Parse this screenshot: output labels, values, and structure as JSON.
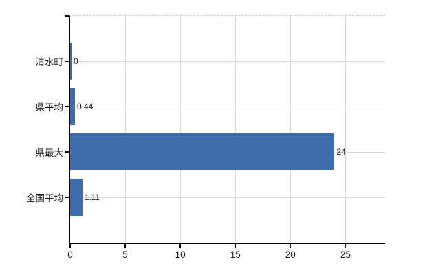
{
  "chart_data": {
    "type": "bar",
    "orientation": "horizontal",
    "title": "",
    "xlabel": "",
    "ylabel": "",
    "categories": [
      "清水町",
      "県平均",
      "県最大",
      "全国平均"
    ],
    "values": [
      0,
      0.44,
      24,
      1.11
    ],
    "value_labels": [
      "0",
      "0.44",
      "24",
      "1.11"
    ],
    "x_ticks": [
      0,
      5,
      10,
      15,
      20,
      25
    ],
    "x_tick_labels": [
      "0",
      "5",
      "10",
      "15",
      "20",
      "25"
    ],
    "xlim": [
      0,
      28.6
    ],
    "grid": true,
    "legend": false,
    "bar_color": "#3f6dab",
    "axis_color": "#000000",
    "h_grid_color": "#d3dad2",
    "v_grid_color": "#d8d9df",
    "top_border_color": "#c9c9cf",
    "text_color": "#1a1a1a"
  }
}
